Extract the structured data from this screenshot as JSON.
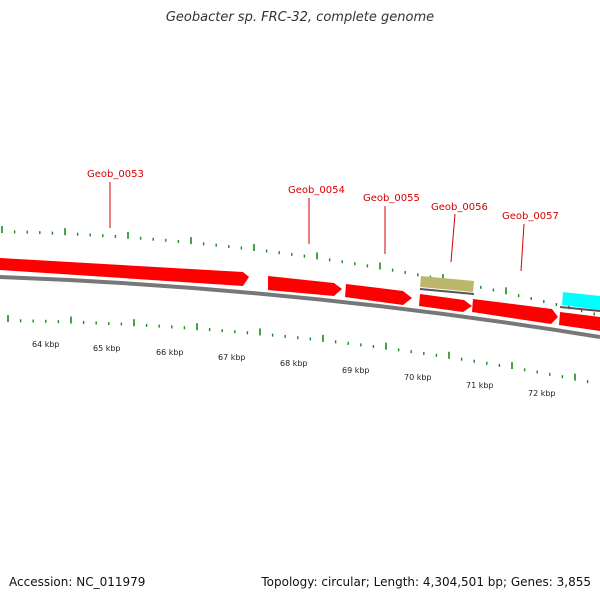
{
  "title": "Geobacter sp. FRC-32, complete genome",
  "footer": {
    "accession": "Accession: NC_011979",
    "summary": "Topology: circular; Length: 4,304,501 bp; Genes: 3,855"
  },
  "colors": {
    "cds": "#ff0000",
    "other_feature": "#bdb76b",
    "rna": "#00ffff",
    "label": "#d40000",
    "tick": "#1a8a1a",
    "backbone": "#777777"
  },
  "genes": [
    {
      "name": "Geob_0053",
      "color_key": "cds"
    },
    {
      "name": "Geob_0054",
      "color_key": "cds"
    },
    {
      "name": "Geob_0055",
      "color_key": "cds"
    },
    {
      "name": "Geob_0056",
      "color_key": "other_feature"
    },
    {
      "name": "Geob_0057",
      "color_key": "cds"
    }
  ],
  "kbp_labels": [
    "64 kbp",
    "65 kbp",
    "66 kbp",
    "67 kbp",
    "68 kbp",
    "69 kbp",
    "70 kbp",
    "71 kbp",
    "72 kbp"
  ]
}
